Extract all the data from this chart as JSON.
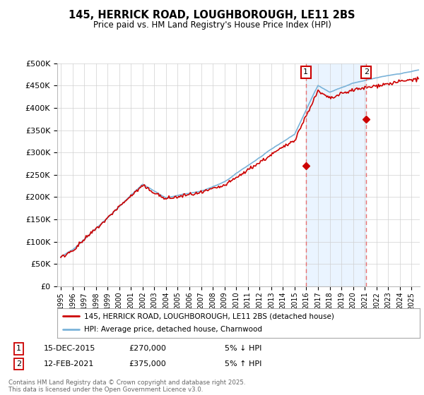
{
  "title": "145, HERRICK ROAD, LOUGHBOROUGH, LE11 2BS",
  "subtitle": "Price paid vs. HM Land Registry's House Price Index (HPI)",
  "ylabel_ticks": [
    "£0",
    "£50K",
    "£100K",
    "£150K",
    "£200K",
    "£250K",
    "£300K",
    "£350K",
    "£400K",
    "£450K",
    "£500K"
  ],
  "ytick_vals": [
    0,
    50000,
    100000,
    150000,
    200000,
    250000,
    300000,
    350000,
    400000,
    450000,
    500000
  ],
  "ylim": [
    0,
    500000
  ],
  "xlim_start": 1994.7,
  "xlim_end": 2025.7,
  "marker1_x": 2015.96,
  "marker1_y": 270000,
  "marker2_x": 2021.12,
  "marker2_y": 375000,
  "marker1_label": "1",
  "marker2_label": "2",
  "marker1_date": "15-DEC-2015",
  "marker1_price": "£270,000",
  "marker1_note": "5% ↓ HPI",
  "marker2_date": "12-FEB-2021",
  "marker2_price": "£375,000",
  "marker2_note": "5% ↑ HPI",
  "hpi_line_color": "#7ab3d9",
  "price_line_color": "#cc0000",
  "marker_box_color": "#cc0000",
  "dashed_line_color": "#e87070",
  "shade_color": "#ddeeff",
  "legend_label1": "145, HERRICK ROAD, LOUGHBOROUGH, LE11 2BS (detached house)",
  "legend_label2": "HPI: Average price, detached house, Charnwood",
  "footer": "Contains HM Land Registry data © Crown copyright and database right 2025.\nThis data is licensed under the Open Government Licence v3.0.",
  "background_color": "#ffffff",
  "plot_bg_color": "#ffffff",
  "grid_color": "#d0d0d0"
}
